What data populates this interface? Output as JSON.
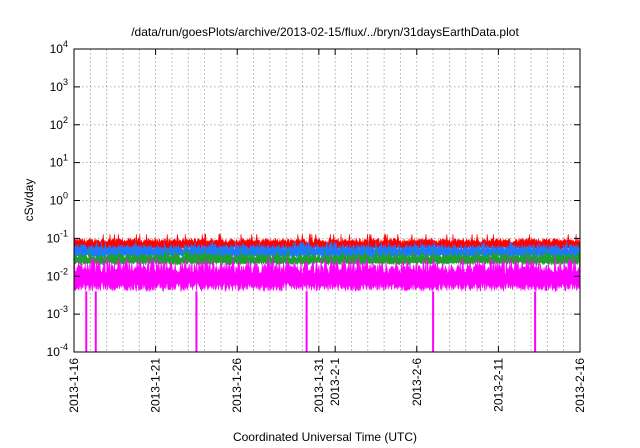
{
  "chart_data": {
    "type": "line",
    "title": "/data/run/goesPlots/archive/2013-02-15/flux/../bryn/31daysEarthData.plot",
    "xlabel": "Coordinated Universal Time (UTC)",
    "ylabel": "cSv/day",
    "yscale": "log",
    "ylim": [
      0.0001,
      10000
    ],
    "xlim": [
      "2013-01-16",
      "2013-02-16"
    ],
    "x_ticks": [
      "2013-1-16",
      "2013-1-21",
      "2013-1-26",
      "2013-1-31",
      "2013-2-1",
      "2013-2-6",
      "2013-2-11",
      "2013-2-16"
    ],
    "y_ticks": [
      {
        "value": 0.0001,
        "base": "10",
        "exp": "-4"
      },
      {
        "value": 0.001,
        "base": "10",
        "exp": "-3"
      },
      {
        "value": 0.01,
        "base": "10",
        "exp": "-2"
      },
      {
        "value": 0.1,
        "base": "10",
        "exp": "-1"
      },
      {
        "value": 1,
        "base": "10",
        "exp": "0"
      },
      {
        "value": 10,
        "base": "10",
        "exp": "1"
      },
      {
        "value": 100,
        "base": "10",
        "exp": "2"
      },
      {
        "value": 1000,
        "base": "10",
        "exp": "3"
      },
      {
        "value": 10000,
        "base": "10",
        "exp": "4"
      }
    ],
    "grid": true,
    "legend": "none",
    "series": [
      {
        "color": "#ff0000",
        "typical_range": [
          0.05,
          0.1
        ],
        "peak": 0.13
      },
      {
        "color": "#1e78ff",
        "typical_range": [
          0.03,
          0.07
        ],
        "peak": 0.08
      },
      {
        "color": "#20a030",
        "typical_range": [
          0.02,
          0.04
        ],
        "peak": 0.05
      },
      {
        "color": "#ff00ff",
        "typical_range": [
          0.004,
          0.025
        ],
        "peak": 0.03,
        "dropouts": [
          "2013-01-16T18:00",
          "2013-01-17T08:00",
          "2013-01-23T12:00",
          "2013-01-30T06:00",
          "2013-02-07T00:00",
          "2013-02-13T06:00"
        ],
        "dropout_value": 0.0001
      }
    ]
  }
}
